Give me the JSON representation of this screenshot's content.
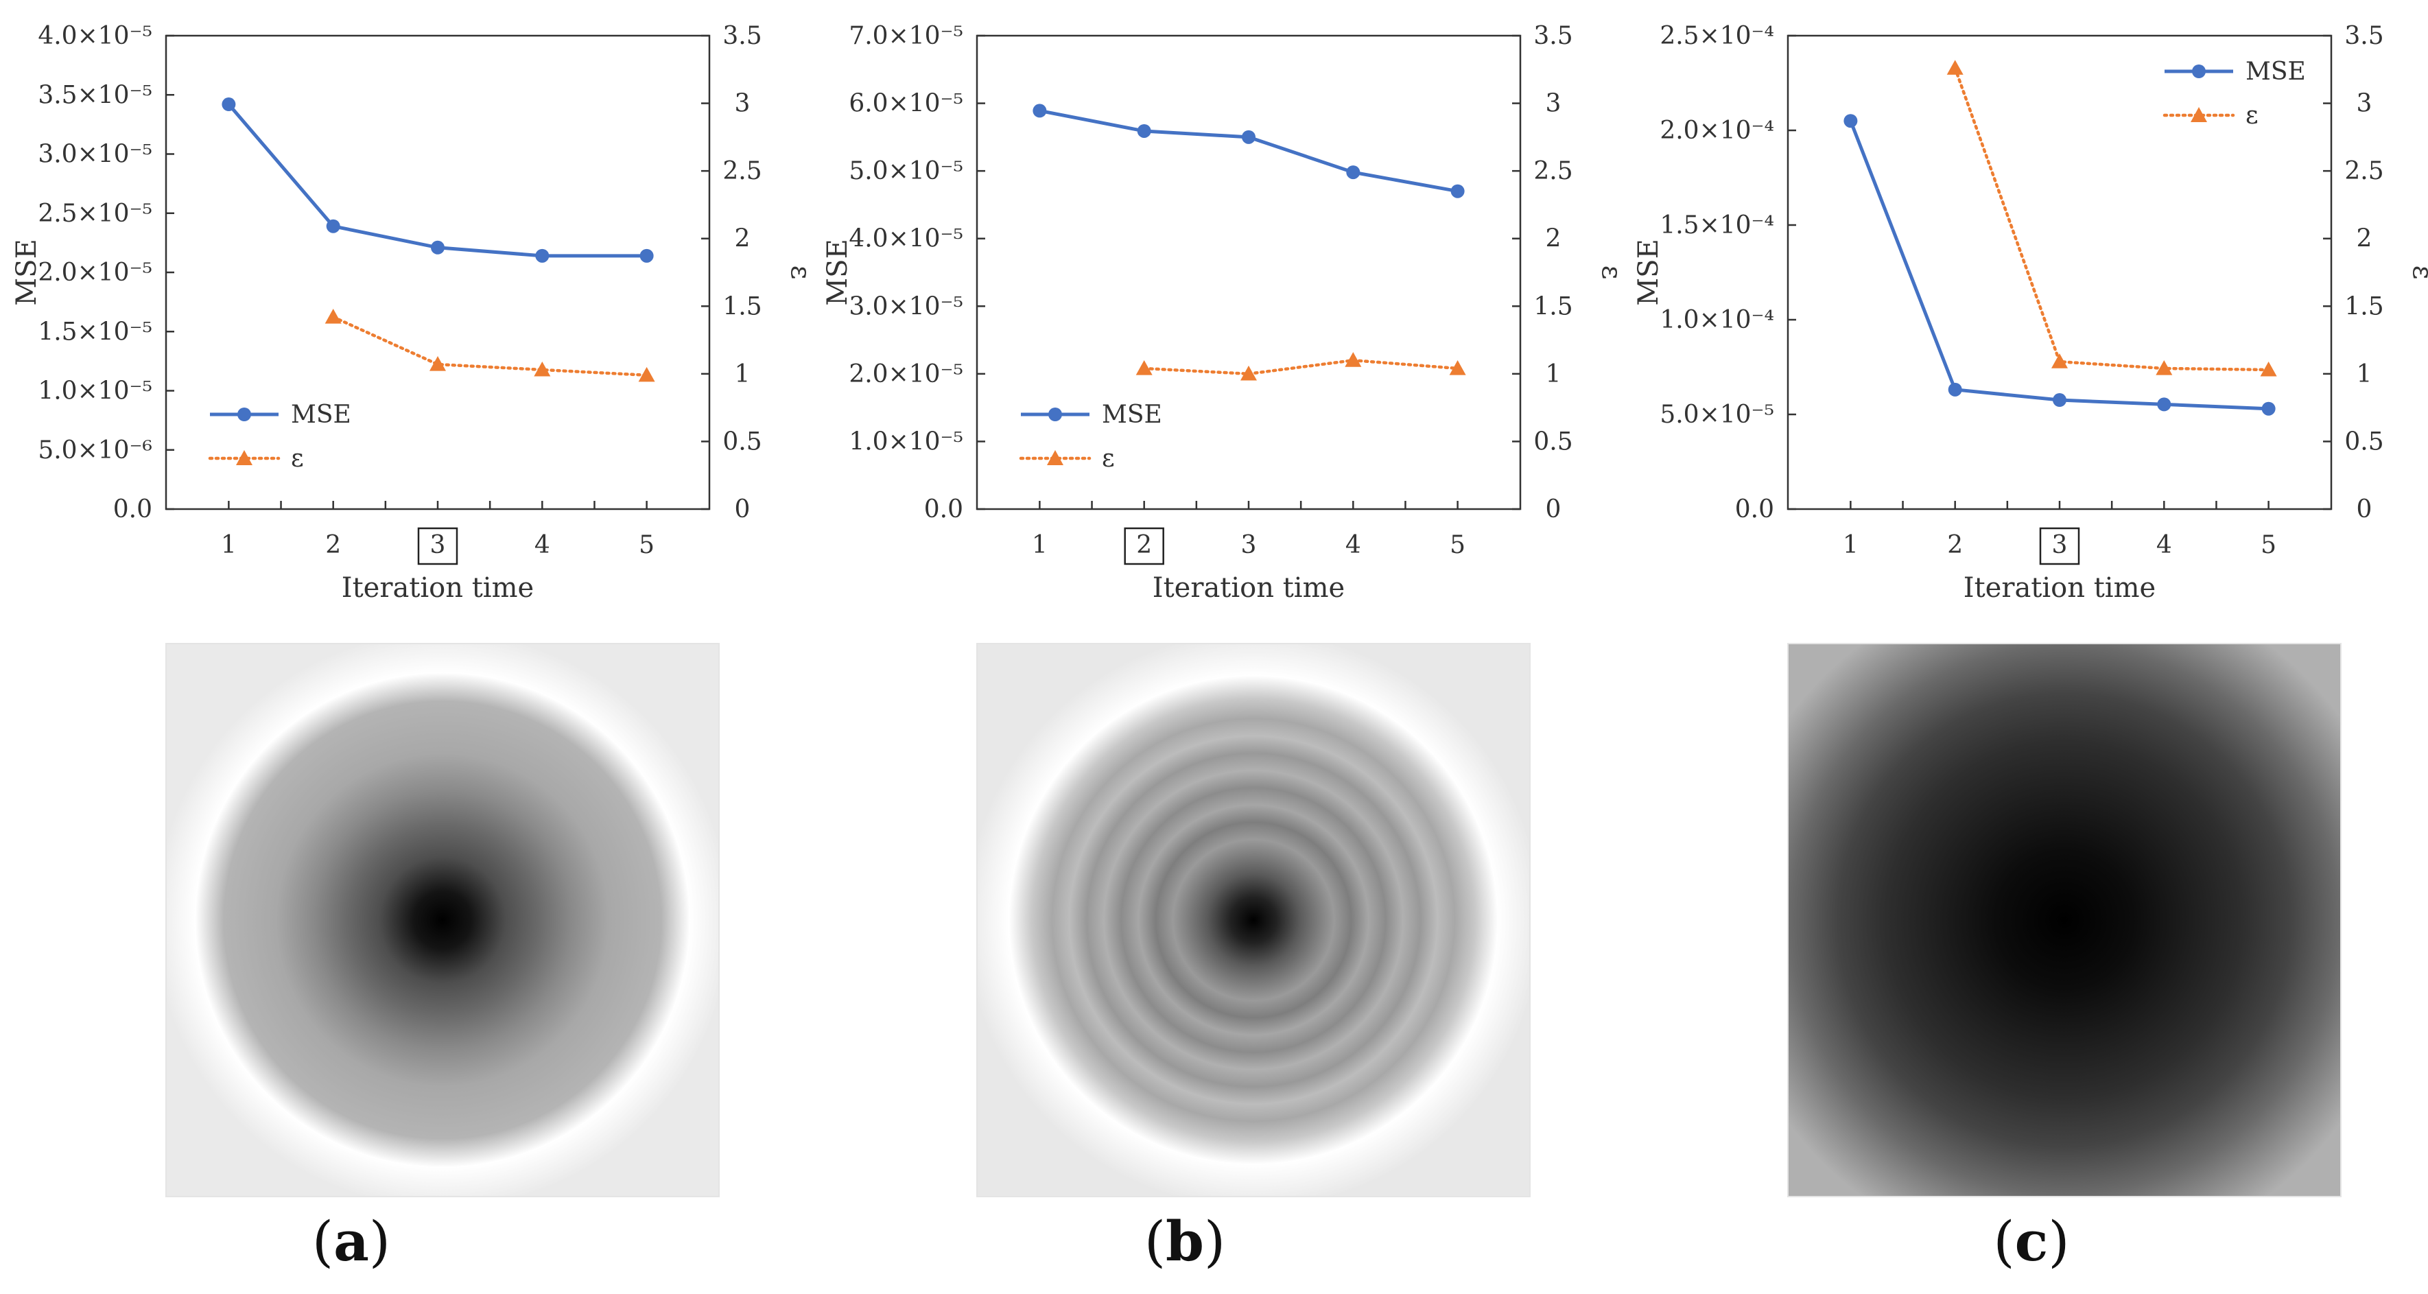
{
  "figure": {
    "panels": [
      {
        "letter": "a",
        "caption_open": "(",
        "caption_close": ")"
      },
      {
        "letter": "b",
        "caption_open": "(",
        "caption_close": ")"
      },
      {
        "letter": "c",
        "caption_open": "(",
        "caption_close": ")"
      }
    ]
  },
  "colors": {
    "mse": "#4472C4",
    "eps": "#ED7D31",
    "axis": "#333333"
  },
  "chart_data": [
    {
      "type": "line",
      "panel": "a",
      "xlabel": "Iteration time",
      "ylabel": "MSE",
      "y2label": "ε",
      "x": [
        1,
        2,
        3,
        4,
        5
      ],
      "x_ticks": [
        "1",
        "2",
        "3",
        "4",
        "5"
      ],
      "boxed_tick": "3",
      "ylim": [
        0,
        4e-05
      ],
      "y_ticks": [
        "0.0",
        "5.0×10⁻⁶",
        "1.0×10⁻⁵",
        "1.5×10⁻⁵",
        "2.0×10⁻⁵",
        "2.5×10⁻⁵",
        "3.0×10⁻⁵",
        "3.5×10⁻⁵",
        "4.0×10⁻⁵"
      ],
      "y_tick_values": [
        0,
        5e-06,
        1e-05,
        1.5e-05,
        2e-05,
        2.5e-05,
        3e-05,
        3.5e-05,
        4e-05
      ],
      "y2lim": [
        0,
        3.5
      ],
      "y2_ticks": [
        "0",
        "0.5",
        "1",
        "1.5",
        "2",
        "2.5",
        "3",
        "3.5"
      ],
      "y2_tick_values": [
        0,
        0.5,
        1,
        1.5,
        2,
        2.5,
        3,
        3.5
      ],
      "legend_position": "lower-left",
      "series": [
        {
          "name": "MSE",
          "axis": "left",
          "style": "solid-circle",
          "x": [
            1,
            2,
            3,
            4,
            5
          ],
          "values": [
            3.42e-05,
            2.39e-05,
            2.21e-05,
            2.14e-05,
            2.14e-05
          ]
        },
        {
          "name": "ε",
          "axis": "right",
          "style": "dotted-triangle",
          "x": [
            2,
            3,
            4,
            5
          ],
          "values": [
            1.42,
            1.07,
            1.03,
            0.99
          ]
        }
      ]
    },
    {
      "type": "line",
      "panel": "b",
      "xlabel": "Iteration time",
      "ylabel": "MSE",
      "y2label": "ε",
      "x": [
        1,
        2,
        3,
        4,
        5
      ],
      "x_ticks": [
        "1",
        "2",
        "3",
        "4",
        "5"
      ],
      "boxed_tick": "2",
      "ylim": [
        0,
        7e-05
      ],
      "y_ticks": [
        "0.0",
        "1.0×10⁻⁵",
        "2.0×10⁻⁵",
        "3.0×10⁻⁵",
        "4.0×10⁻⁵",
        "5.0×10⁻⁵",
        "6.0×10⁻⁵",
        "7.0×10⁻⁵"
      ],
      "y_tick_values": [
        0,
        1e-05,
        2e-05,
        3e-05,
        4e-05,
        5e-05,
        6e-05,
        7e-05
      ],
      "y2lim": [
        0,
        3.5
      ],
      "y2_ticks": [
        "0",
        "0.5",
        "1",
        "1.5",
        "2",
        "2.5",
        "3",
        "3.5"
      ],
      "y2_tick_values": [
        0,
        0.5,
        1,
        1.5,
        2,
        2.5,
        3,
        3.5
      ],
      "legend_position": "lower-left",
      "series": [
        {
          "name": "MSE",
          "axis": "left",
          "style": "solid-circle",
          "x": [
            1,
            2,
            3,
            4,
            5
          ],
          "values": [
            5.89e-05,
            5.59e-05,
            5.5e-05,
            4.98e-05,
            4.7e-05
          ]
        },
        {
          "name": "ε",
          "axis": "right",
          "style": "dotted-triangle",
          "x": [
            2,
            3,
            4,
            5
          ],
          "values": [
            1.04,
            1.0,
            1.1,
            1.04
          ]
        }
      ]
    },
    {
      "type": "line",
      "panel": "c",
      "xlabel": "Iteration time",
      "ylabel": "MSE",
      "y2label": "ε",
      "x": [
        1,
        2,
        3,
        4,
        5
      ],
      "x_ticks": [
        "1",
        "2",
        "3",
        "4",
        "5"
      ],
      "boxed_tick": "3",
      "ylim": [
        0,
        0.00025
      ],
      "y_ticks": [
        "0.0",
        "5.0×10⁻⁵",
        "1.0×10⁻⁴",
        "1.5×10⁻⁴",
        "2.0×10⁻⁴",
        "2.5×10⁻⁴"
      ],
      "y_tick_values": [
        0,
        5e-05,
        0.0001,
        0.00015,
        0.0002,
        0.00025
      ],
      "y2lim": [
        0,
        3.5
      ],
      "y2_ticks": [
        "0",
        "0.5",
        "1",
        "1.5",
        "2",
        "2.5",
        "3",
        "3.5"
      ],
      "y2_tick_values": [
        0,
        0.5,
        1,
        1.5,
        2,
        2.5,
        3,
        3.5
      ],
      "legend_position": "top-right",
      "series": [
        {
          "name": "MSE",
          "axis": "left",
          "style": "solid-circle",
          "x": [
            1,
            2,
            3,
            4,
            5
          ],
          "values": [
            0.000205,
            6.31e-05,
            5.76e-05,
            5.53e-05,
            5.3e-05
          ]
        },
        {
          "name": "ε",
          "axis": "right",
          "style": "dotted-triangle",
          "x": [
            2,
            3,
            4,
            5
          ],
          "values": [
            3.26,
            1.09,
            1.04,
            1.03
          ]
        }
      ]
    }
  ]
}
